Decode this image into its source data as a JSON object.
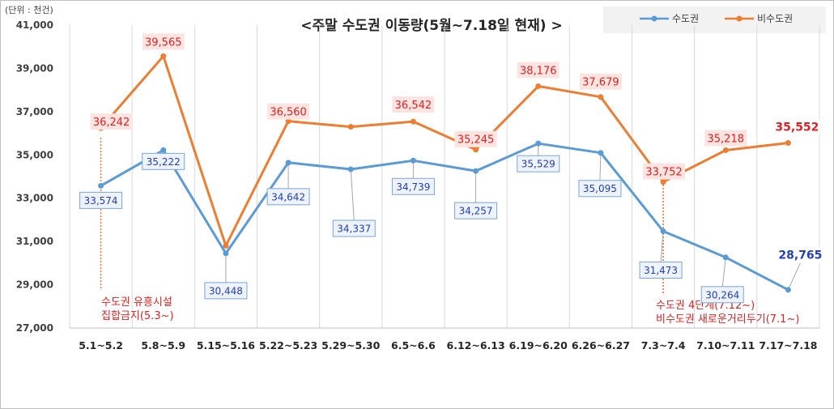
{
  "unit_label": "(단위 : 천건)",
  "chart_data": {
    "type": "line",
    "title": "<주말 수도권 이동량(5월~7.18일 현재) >",
    "xlabel": "",
    "ylabel": "",
    "ylim": [
      27000,
      41000
    ],
    "yticks": [
      27000,
      29000,
      31000,
      33000,
      35000,
      37000,
      39000,
      41000
    ],
    "ytick_labels": [
      "27,000",
      "29,000",
      "31,000",
      "33,000",
      "35,000",
      "37,000",
      "39,000",
      "41,000"
    ],
    "categories": [
      "5.1~5.2",
      "5.8~5.9",
      "5.15~5.16",
      "5.22~5.23",
      "5.29~5.30",
      "6.5~6.6",
      "6.12~6.13",
      "6.19~6.20",
      "6.26~6.27",
      "7.3~7.4",
      "7.10~7.11",
      "7.17~7.18"
    ],
    "grid": "vertical",
    "legend_position": "top-right",
    "series": [
      {
        "name": "수도권",
        "color": "#5b9bd5",
        "label_color": "#1f3fbf",
        "values": [
          33574,
          35222,
          30448,
          34642,
          34337,
          34739,
          34257,
          35529,
          35095,
          31473,
          30264,
          28765
        ],
        "labels": [
          "33,574",
          "35,222",
          "30,448",
          "34,642",
          "34,337",
          "34,739",
          "34,257",
          "35,529",
          "35,095",
          "31,473",
          "30,264",
          "28,765"
        ]
      },
      {
        "name": "비수도권",
        "color": "#ed7d31",
        "label_color": "#e02020",
        "values": [
          36242,
          39565,
          30800,
          36560,
          36300,
          36542,
          35245,
          38176,
          37679,
          33752,
          35218,
          35552
        ],
        "labels": [
          "36,242",
          "39,565",
          "",
          "36,560",
          "",
          "36,542",
          "35,245",
          "38,176",
          "37,679",
          "33,752",
          "35,218",
          "35,552"
        ]
      }
    ],
    "annotations": [
      {
        "category_index": 0,
        "lines": [
          "수도권  유흥시설",
          "집합금지(5.3~)"
        ]
      },
      {
        "category_index": 9,
        "lines": [
          "수도권  4단계(7.12~)",
          "비수도권 새로운거리두기(7.1~)"
        ]
      }
    ]
  }
}
